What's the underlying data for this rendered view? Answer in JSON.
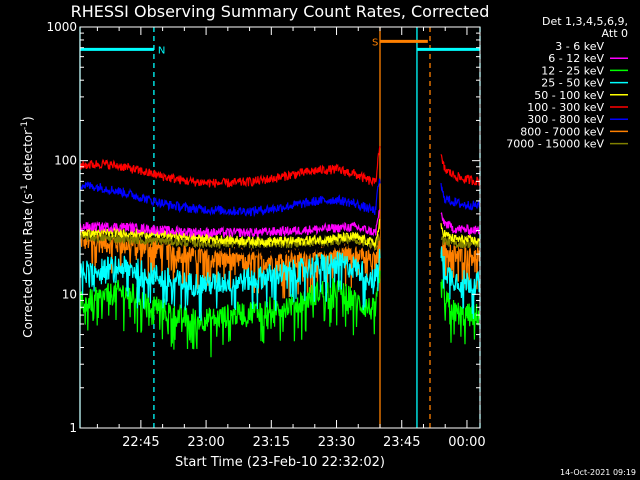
{
  "chart_data": {
    "type": "line",
    "title": "RHESSI Observing Summary Count Rates, Corrected",
    "xlabel": "Start Time (23-Feb-10 22:32:02)",
    "ylabel_main": "Corrected Count Rate (s",
    "ylabel_sup1": "-1",
    "ylabel_mid": " detector",
    "ylabel_sup2": "-1",
    "ylabel_end": ")",
    "yscale": "log",
    "ylim": [
      1,
      1000
    ],
    "xlim_minutes": [
      0,
      92
    ],
    "x_unit": "minutes since 22:32:02",
    "x_ticks": [
      {
        "t": 14,
        "label": "22:45"
      },
      {
        "t": 29,
        "label": "23:00"
      },
      {
        "t": 44,
        "label": "23:15"
      },
      {
        "t": 59,
        "label": "23:30"
      },
      {
        "t": 74,
        "label": "23:45"
      },
      {
        "t": 89,
        "label": "00:00"
      }
    ],
    "y_ticks": [
      {
        "v": 1,
        "label": "1"
      },
      {
        "v": 10,
        "label": "10"
      },
      {
        "v": 100,
        "label": "100"
      },
      {
        "v": 1000,
        "label": "1000"
      }
    ],
    "legend_header": [
      "Det 1,3,4,5,6,9,",
      "Att 0"
    ],
    "legend_position": "top-right outside",
    "timestamp": "14-Oct-2021 09:19",
    "gaps_minutes": [
      [
        69,
        83
      ]
    ],
    "series": [
      {
        "name": "3 - 6 keV",
        "color": "#000000",
        "x": [
          0,
          10,
          20,
          30,
          40,
          50,
          57,
          63,
          68,
          69,
          83,
          84,
          86,
          92
        ],
        "y": [
          28,
          27,
          25,
          22,
          21,
          21,
          22,
          24,
          21,
          30,
          28,
          26,
          24,
          23
        ]
      },
      {
        "name": "6 - 12 keV",
        "color": "#ff00ff",
        "x": [
          0,
          10,
          20,
          30,
          40,
          50,
          57,
          63,
          68,
          69,
          83,
          84,
          86,
          92
        ],
        "y": [
          32,
          32,
          30,
          29,
          29,
          30,
          31,
          32,
          29,
          45,
          38,
          34,
          31,
          30
        ]
      },
      {
        "name": "12 - 25 keV",
        "color": "#00ff00",
        "x": [
          0,
          5,
          9,
          14,
          20,
          25,
          30,
          35,
          40,
          45,
          50,
          55,
          59,
          63,
          66,
          68,
          69,
          83,
          84,
          86,
          88,
          92
        ],
        "y": [
          8.5,
          9.5,
          10.5,
          9.5,
          7.5,
          6.5,
          6.5,
          7,
          7.5,
          8,
          8.5,
          10.5,
          11,
          9,
          8,
          7.5,
          13,
          12,
          9,
          7.5,
          7,
          7
        ]
      },
      {
        "name": "25 - 50 keV",
        "color": "#00ffff",
        "x": [
          0,
          5,
          9,
          14,
          20,
          25,
          30,
          35,
          40,
          45,
          50,
          55,
          59,
          63,
          66,
          68,
          69,
          83,
          84,
          86,
          88,
          92
        ],
        "y": [
          14.5,
          15.5,
          16,
          15,
          13,
          12,
          12,
          12.5,
          13,
          14,
          15,
          16.5,
          17,
          16,
          14,
          13,
          20,
          20,
          15,
          13,
          12.5,
          12
        ]
      },
      {
        "name": "50 - 100 keV",
        "color": "#ffff00",
        "x": [
          0,
          10,
          20,
          30,
          40,
          50,
          57,
          63,
          68,
          69,
          83,
          84,
          86,
          92
        ],
        "y": [
          29,
          29,
          28,
          26,
          25,
          25,
          26,
          27,
          24,
          35,
          32,
          28,
          26,
          25
        ]
      },
      {
        "name": "100 - 300 keV",
        "color": "#ff0000",
        "x": [
          0,
          5,
          10,
          15,
          20,
          25,
          30,
          35,
          40,
          45,
          50,
          55,
          59,
          63,
          66,
          68,
          68.7,
          69,
          83,
          83.4,
          84,
          86,
          88,
          92
        ],
        "y": [
          92,
          95,
          90,
          82,
          75,
          70,
          68,
          68,
          70,
          74,
          80,
          85,
          86,
          80,
          72,
          68,
          120,
          120,
          110,
          95,
          85,
          78,
          73,
          70
        ]
      },
      {
        "name": "300 - 800 keV",
        "color": "#0000ff",
        "x": [
          0,
          5,
          10,
          15,
          20,
          25,
          30,
          35,
          40,
          45,
          50,
          55,
          59,
          63,
          66,
          68,
          68.7,
          69,
          83,
          83.4,
          84,
          86,
          88,
          92
        ],
        "y": [
          66,
          63,
          58,
          52,
          47,
          44,
          43,
          42,
          42,
          44,
          47,
          50,
          51,
          48,
          44,
          42,
          70,
          70,
          65,
          57,
          52,
          49,
          47,
          46
        ]
      },
      {
        "name": "800 - 7000 keV",
        "color": "#ff8000",
        "x": [
          0,
          10,
          20,
          30,
          40,
          50,
          57,
          63,
          68,
          69,
          83,
          84,
          86,
          92
        ],
        "y": [
          26,
          24,
          22,
          19,
          18,
          18,
          19,
          21,
          18,
          24,
          24,
          22,
          20,
          20
        ]
      },
      {
        "name": "7000 - 15000 keV",
        "color": "#808000",
        "x": [
          0,
          10,
          20,
          30,
          40,
          50,
          57,
          63,
          68,
          69,
          83,
          84,
          86,
          92
        ],
        "y": [
          27,
          26,
          25,
          24,
          24,
          24,
          25,
          26,
          23,
          28,
          26,
          25,
          24,
          24
        ]
      }
    ],
    "flag_bars": [
      {
        "label": "N",
        "color": "#00ffff",
        "x0": 0,
        "x1": 17,
        "value": 680
      },
      {
        "label": "S",
        "color": "#ff8000",
        "x0": 69,
        "x1": 80,
        "value": 780
      },
      {
        "label": "",
        "color": "#00ffff",
        "x0": 77.5,
        "x1": 92,
        "value": 680
      }
    ],
    "vertical_markers": [
      {
        "x": 0,
        "color": "#00ffff",
        "style": "solid"
      },
      {
        "x": 17,
        "color": "#00ffff",
        "style": "dashed"
      },
      {
        "x": 69,
        "color": "#ff8000",
        "style": "solid"
      },
      {
        "x": 77.5,
        "color": "#00ffff",
        "style": "solid"
      },
      {
        "x": 80.5,
        "color": "#ff8000",
        "style": "dashed"
      },
      {
        "x": 92,
        "color": "#00ffff",
        "style": "dashed"
      }
    ]
  }
}
